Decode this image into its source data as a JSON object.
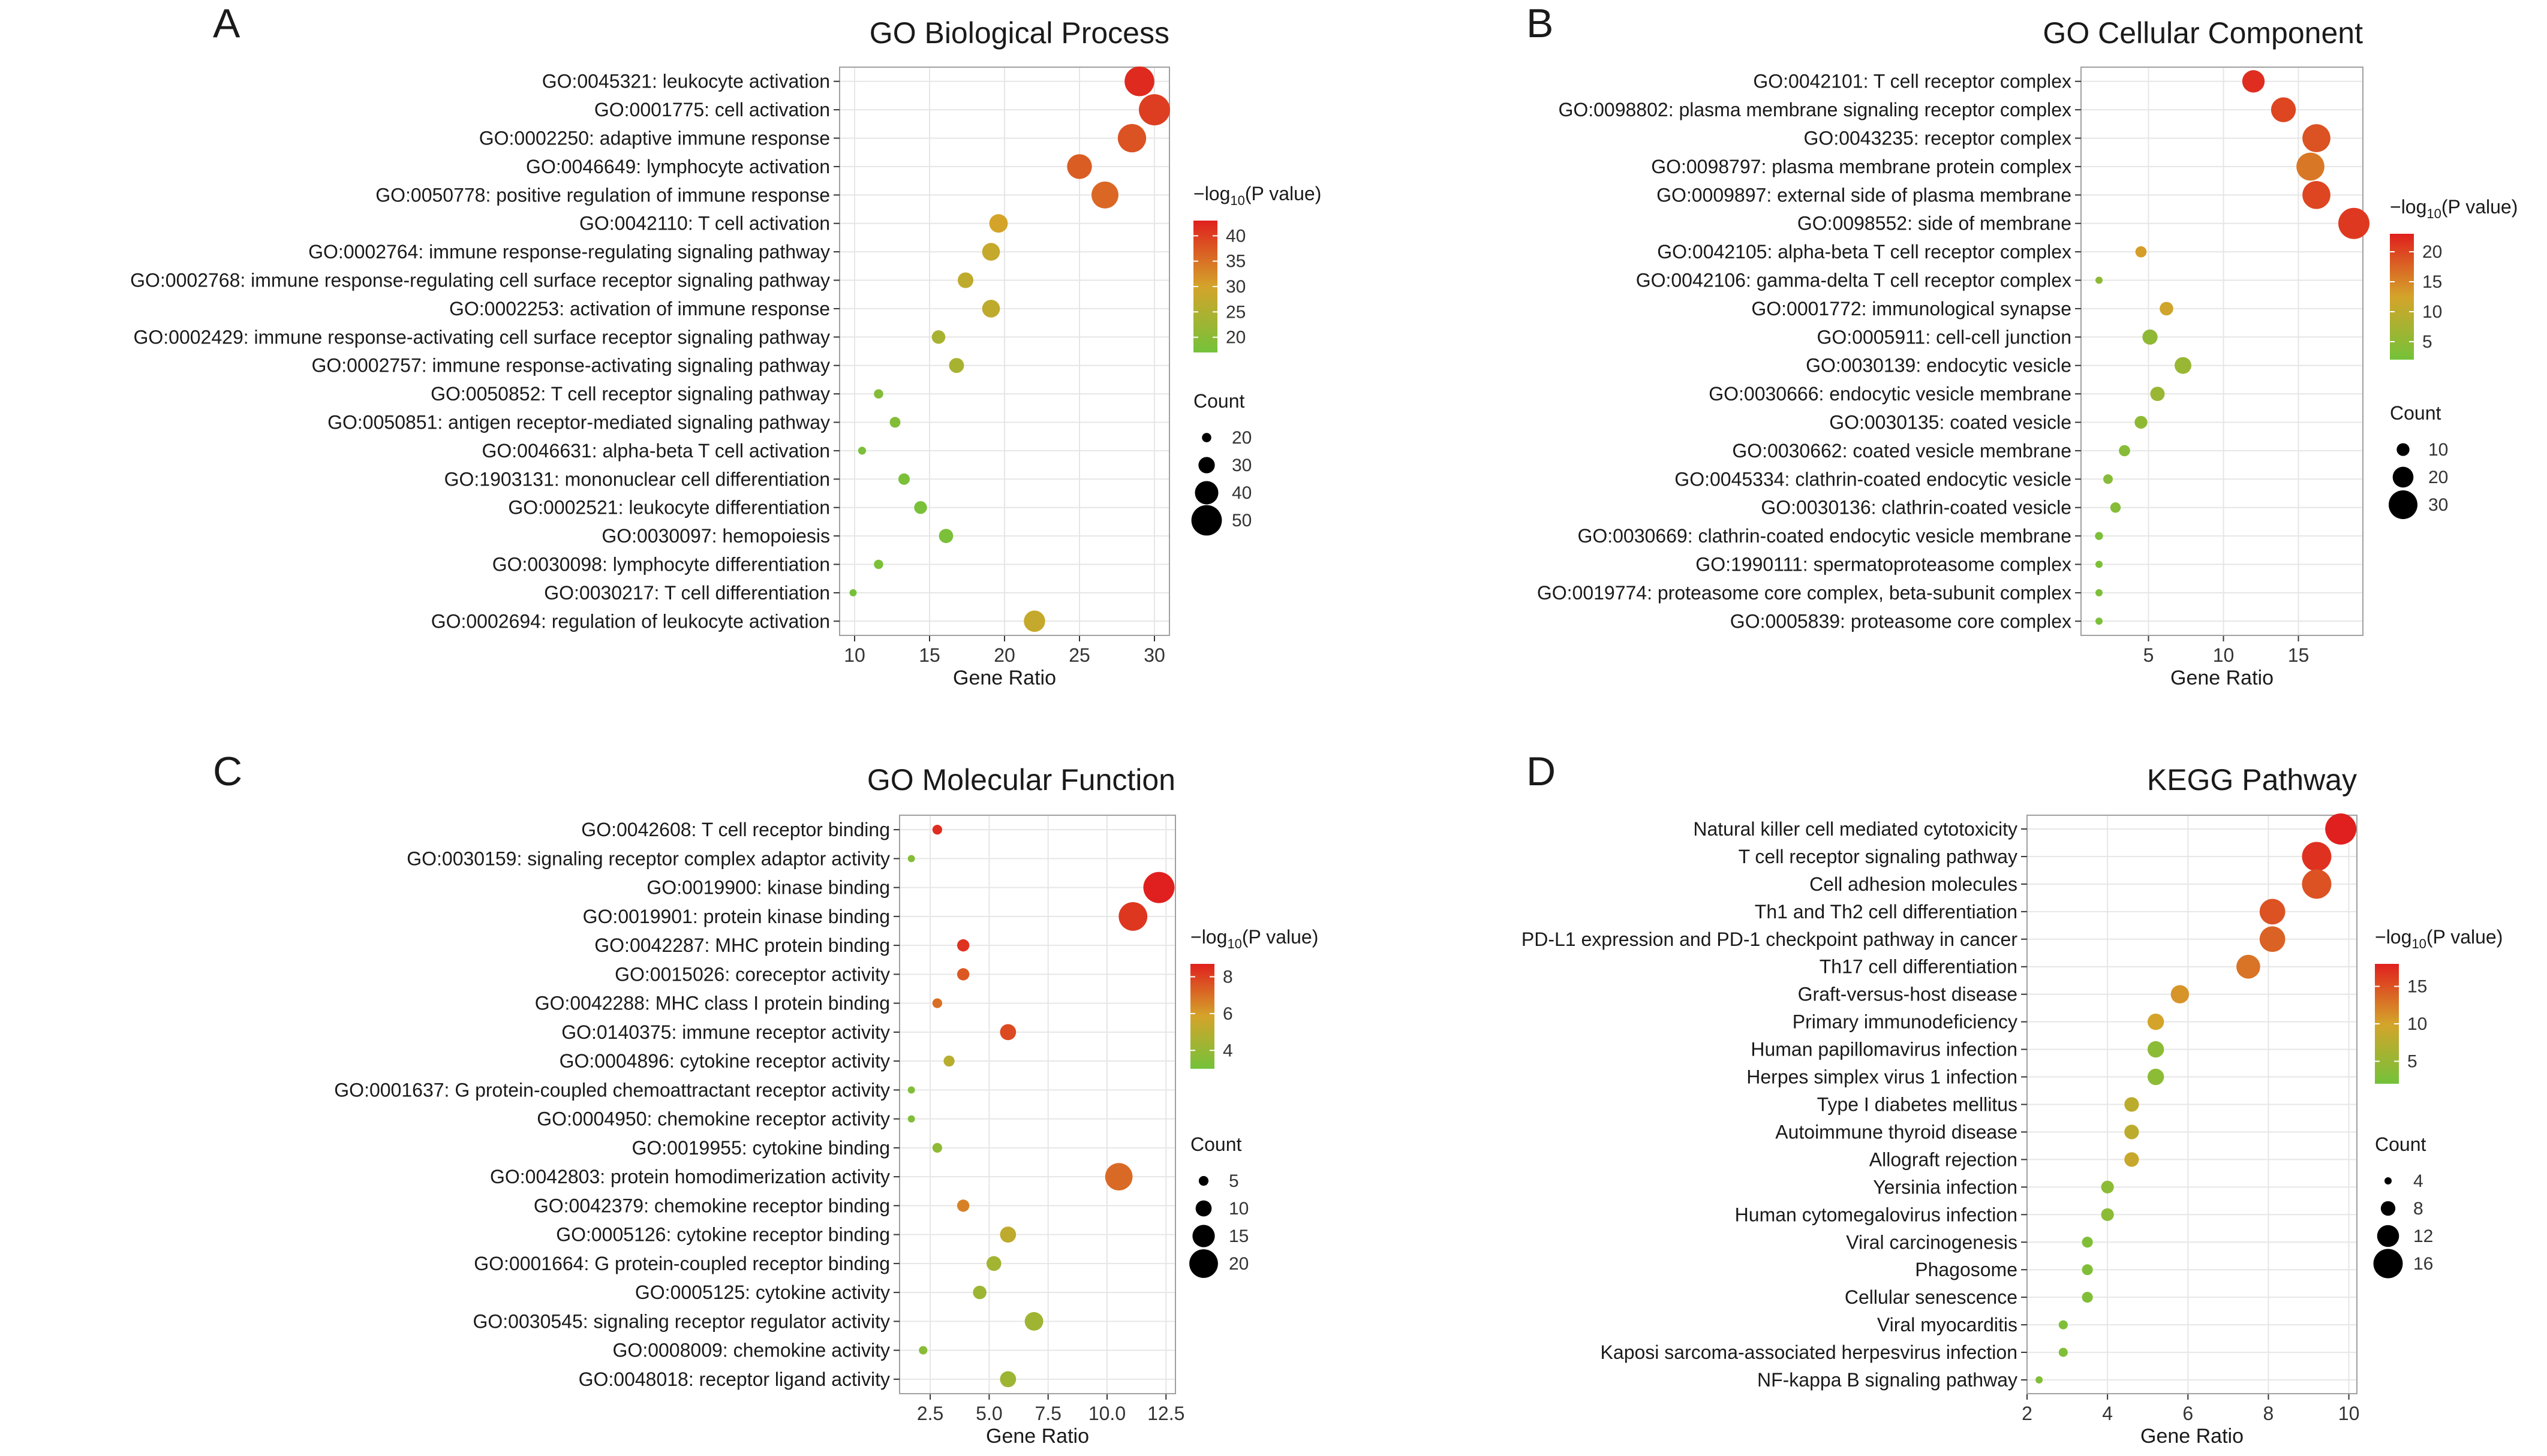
{
  "chart_data": [
    {
      "panel": "A",
      "type": "scatter",
      "title": "GO Biological Process",
      "xlabel": "Gene Ratio",
      "xlim": [
        9,
        31
      ],
      "xticks": [
        10,
        15,
        20,
        25,
        30
      ],
      "terms": [
        {
          "label": "GO:0045321: leukocyte activation",
          "x": 29.0,
          "count": 49,
          "p": 42
        },
        {
          "label": "GO:0001775: cell activation",
          "x": 30.0,
          "count": 51,
          "p": 40
        },
        {
          "label": "GO:0002250: adaptive immune response",
          "x": 28.5,
          "count": 47,
          "p": 38
        },
        {
          "label": "GO:0046649: lymphocyte activation",
          "x": 25.0,
          "count": 42,
          "p": 37
        },
        {
          "label": "GO:0050778: positive regulation of immune response",
          "x": 26.7,
          "count": 45,
          "p": 36
        },
        {
          "label": "GO:0042110: T cell activation",
          "x": 19.6,
          "count": 33,
          "p": 30
        },
        {
          "label": "GO:0002764: immune response-regulating signaling pathway",
          "x": 19.1,
          "count": 32,
          "p": 28
        },
        {
          "label": "GO:0002768: immune response-regulating cell surface receptor signaling pathway",
          "x": 17.4,
          "count": 29,
          "p": 27
        },
        {
          "label": "GO:0002253: activation of immune response",
          "x": 19.1,
          "count": 32,
          "p": 27
        },
        {
          "label": "GO:0002429: immune response-activating cell surface receptor signaling pathway",
          "x": 15.6,
          "count": 26,
          "p": 24
        },
        {
          "label": "GO:0002757: immune response-activating signaling pathway",
          "x": 16.8,
          "count": 28,
          "p": 24
        },
        {
          "label": "GO:0050852: T cell receptor signaling pathway",
          "x": 11.6,
          "count": 20,
          "p": 19
        },
        {
          "label": "GO:0050851: antigen receptor-mediated signaling pathway",
          "x": 12.7,
          "count": 22,
          "p": 19
        },
        {
          "label": "GO:0046631: alpha-beta T cell activation",
          "x": 10.5,
          "count": 18,
          "p": 18
        },
        {
          "label": "GO:1903131: mononuclear cell differentiation",
          "x": 13.3,
          "count": 23,
          "p": 18
        },
        {
          "label": "GO:0002521: leukocyte differentiation",
          "x": 14.4,
          "count": 25,
          "p": 18
        },
        {
          "label": "GO:0030097: hemopoiesis",
          "x": 16.1,
          "count": 27,
          "p": 18
        },
        {
          "label": "GO:0030098: lymphocyte differentiation",
          "x": 11.6,
          "count": 20,
          "p": 18
        },
        {
          "label": "GO:0030217: T cell differentiation",
          "x": 9.9,
          "count": 17,
          "p": 17
        },
        {
          "label": "GO:0002694: regulation of leukocyte activation",
          "x": 22.0,
          "count": 37,
          "p": 28
        }
      ],
      "color_legend": {
        "title": "−log",
        "sub": "10",
        "title_rest": "(P value)",
        "min": 17,
        "max": 43,
        "ticks": [
          40,
          35,
          30,
          25,
          20
        ]
      },
      "size_legend": {
        "title": "Count",
        "values": [
          20,
          30,
          40,
          50
        ],
        "cmin": 17,
        "cmax": 51
      }
    },
    {
      "panel": "B",
      "type": "scatter",
      "title": "GO Cellular Component",
      "xlabel": "Gene Ratio",
      "xlim": [
        0.5,
        19.3
      ],
      "xticks": [
        5,
        10,
        15
      ],
      "terms": [
        {
          "label": "GO:0042101: T cell receptor complex",
          "x": 12.0,
          "count": 22,
          "p": 22
        },
        {
          "label": "GO:0098802: plasma membrane signaling receptor complex",
          "x": 14.0,
          "count": 25,
          "p": 20
        },
        {
          "label": "GO:0043235: receptor complex",
          "x": 16.2,
          "count": 29,
          "p": 19
        },
        {
          "label": "GO:0098797: plasma membrane protein complex",
          "x": 15.8,
          "count": 29,
          "p": 16
        },
        {
          "label": "GO:0009897: external side of plasma membrane",
          "x": 16.2,
          "count": 29,
          "p": 20
        },
        {
          "label": "GO:0098552: side of membrane",
          "x": 18.7,
          "count": 33,
          "p": 21
        },
        {
          "label": "GO:0042105: alpha-beta T cell receptor complex",
          "x": 4.5,
          "count": 8,
          "p": 13
        },
        {
          "label": "GO:0042106: gamma-delta T cell receptor complex",
          "x": 1.7,
          "count": 3,
          "p": 5
        },
        {
          "label": "GO:0001772: immunological synapse",
          "x": 6.2,
          "count": 11,
          "p": 12
        },
        {
          "label": "GO:0005911: cell-cell junction",
          "x": 5.1,
          "count": 13,
          "p": 5
        },
        {
          "label": "GO:0030139: endocytic vesicle",
          "x": 7.3,
          "count": 15,
          "p": 6
        },
        {
          "label": "GO:0030666: endocytic vesicle membrane",
          "x": 5.6,
          "count": 12,
          "p": 6
        },
        {
          "label": "GO:0030135: coated vesicle",
          "x": 4.5,
          "count": 10,
          "p": 5
        },
        {
          "label": "GO:0030662: coated vesicle membrane",
          "x": 3.4,
          "count": 8,
          "p": 4
        },
        {
          "label": "GO:0045334: clathrin-coated endocytic vesicle",
          "x": 2.3,
          "count": 6,
          "p": 4
        },
        {
          "label": "GO:0030136: clathrin-coated vesicle",
          "x": 2.8,
          "count": 7,
          "p": 4
        },
        {
          "label": "GO:0030669: clathrin-coated endocytic vesicle membrane",
          "x": 1.7,
          "count": 4,
          "p": 3
        },
        {
          "label": "GO:1990111: spermatoproteasome complex",
          "x": 1.7,
          "count": 3,
          "p": 3
        },
        {
          "label": "GO:0019774: proteasome core complex, beta-subunit complex",
          "x": 1.7,
          "count": 3,
          "p": 3
        },
        {
          "label": "GO:0005839: proteasome core complex",
          "x": 1.7,
          "count": 3,
          "p": 3
        }
      ],
      "color_legend": {
        "title": "−log",
        "sub": "10",
        "title_rest": "(P value)",
        "min": 2,
        "max": 23,
        "ticks": [
          20,
          15,
          10,
          5
        ]
      },
      "size_legend": {
        "title": "Count",
        "values": [
          10,
          20,
          30
        ],
        "cmin": 3,
        "cmax": 33
      }
    },
    {
      "panel": "C",
      "type": "scatter",
      "title": "GO Molecular Function",
      "xlabel": "Gene Ratio",
      "xlim": [
        1.2,
        12.9
      ],
      "xticks": [
        2.5,
        5.0,
        7.5,
        10.0,
        12.5
      ],
      "xtick_labels": [
        "2.5",
        "5.0",
        "7.5",
        "10.0",
        "12.5"
      ],
      "terms": [
        {
          "label": "GO:0042608: T cell receptor binding",
          "x": 2.8,
          "count": 5,
          "p": 8.4
        },
        {
          "label": "GO:0030159: signaling receptor complex adaptor activity",
          "x": 1.7,
          "count": 3,
          "p": 3.5
        },
        {
          "label": "GO:0019900: kinase binding",
          "x": 12.2,
          "count": 22,
          "p": 8.7
        },
        {
          "label": "GO:0019901: protein kinase binding",
          "x": 11.1,
          "count": 20,
          "p": 8.2
        },
        {
          "label": "GO:0042287: MHC protein binding",
          "x": 3.9,
          "count": 7,
          "p": 8.3
        },
        {
          "label": "GO:0015026: coreceptor activity",
          "x": 3.9,
          "count": 7,
          "p": 7.5
        },
        {
          "label": "GO:0042288: MHC class I protein binding",
          "x": 2.8,
          "count": 5,
          "p": 7.0
        },
        {
          "label": "GO:0140375: immune receptor activity",
          "x": 5.8,
          "count": 10,
          "p": 7.8
        },
        {
          "label": "GO:0004896: cytokine receptor activity",
          "x": 3.3,
          "count": 6,
          "p": 5.0
        },
        {
          "label": "GO:0001637: G protein-coupled chemoattractant receptor activity",
          "x": 1.7,
          "count": 3,
          "p": 3.4
        },
        {
          "label": "GO:0004950: chemokine receptor activity",
          "x": 1.7,
          "count": 3,
          "p": 3.4
        },
        {
          "label": "GO:0019955: cytokine binding",
          "x": 2.8,
          "count": 5,
          "p": 3.8
        },
        {
          "label": "GO:0042803: protein homodimerization activity",
          "x": 10.5,
          "count": 19,
          "p": 7.1
        },
        {
          "label": "GO:0042379: chemokine receptor binding",
          "x": 3.9,
          "count": 7,
          "p": 6.6
        },
        {
          "label": "GO:0005126: cytokine receptor binding",
          "x": 5.8,
          "count": 10,
          "p": 5.2
        },
        {
          "label": "GO:0001664: G protein-coupled receptor binding",
          "x": 5.2,
          "count": 9,
          "p": 4.4
        },
        {
          "label": "GO:0005125: cytokine activity",
          "x": 4.6,
          "count": 8,
          "p": 4.2
        },
        {
          "label": "GO:0030545: signaling receptor regulator activity",
          "x": 6.9,
          "count": 12,
          "p": 4.3
        },
        {
          "label": "GO:0008009: chemokine activity",
          "x": 2.2,
          "count": 4,
          "p": 3.6
        },
        {
          "label": "GO:0048018: receptor ligand activity",
          "x": 5.8,
          "count": 10,
          "p": 4.2
        }
      ],
      "color_legend": {
        "title": "−log",
        "sub": "10",
        "title_rest": "(P value)",
        "min": 3,
        "max": 8.7,
        "ticks": [
          8,
          6,
          4
        ]
      },
      "size_legend": {
        "title": "Count",
        "values": [
          5,
          10,
          15,
          20
        ],
        "cmin": 3,
        "cmax": 22
      }
    },
    {
      "panel": "D",
      "type": "scatter",
      "title": "KEGG Pathway",
      "xlabel": "Gene Ratio",
      "xlim": [
        2,
        10.2
      ],
      "xticks": [
        2,
        4,
        6,
        8,
        10
      ],
      "terms": [
        {
          "label": "Natural killer cell mediated cytotoxicity",
          "x": 9.8,
          "count": 17,
          "p": 18
        },
        {
          "label": "T cell receptor signaling pathway",
          "x": 9.2,
          "count": 16,
          "p": 17
        },
        {
          "label": "Cell adhesion molecules",
          "x": 9.2,
          "count": 16,
          "p": 15
        },
        {
          "label": "Th1 and Th2 cell differentiation",
          "x": 8.1,
          "count": 14,
          "p": 15
        },
        {
          "label": "PD-L1 expression and PD-1 checkpoint pathway in cancer",
          "x": 8.1,
          "count": 14,
          "p": 14
        },
        {
          "label": "Th17 cell differentiation",
          "x": 7.5,
          "count": 13,
          "p": 13
        },
        {
          "label": "Graft-versus-host disease",
          "x": 5.8,
          "count": 10,
          "p": 11
        },
        {
          "label": "Primary immunodeficiency",
          "x": 5.2,
          "count": 9,
          "p": 10
        },
        {
          "label": "Human papillomavirus infection",
          "x": 5.2,
          "count": 9,
          "p": 4
        },
        {
          "label": "Herpes simplex virus 1 infection",
          "x": 5.2,
          "count": 9,
          "p": 4
        },
        {
          "label": "Type I diabetes mellitus",
          "x": 4.6,
          "count": 8,
          "p": 8
        },
        {
          "label": "Autoimmune thyroid disease",
          "x": 4.6,
          "count": 8,
          "p": 8
        },
        {
          "label": "Allograft rejection",
          "x": 4.6,
          "count": 8,
          "p": 9
        },
        {
          "label": "Yersinia infection",
          "x": 4.0,
          "count": 7,
          "p": 4
        },
        {
          "label": "Human cytomegalovirus infection",
          "x": 4.0,
          "count": 7,
          "p": 4
        },
        {
          "label": "Viral carcinogenesis",
          "x": 3.5,
          "count": 6,
          "p": 3
        },
        {
          "label": "Phagosome",
          "x": 3.5,
          "count": 6,
          "p": 3
        },
        {
          "label": "Cellular senescence",
          "x": 3.5,
          "count": 6,
          "p": 3
        },
        {
          "label": "Viral myocarditis",
          "x": 2.9,
          "count": 5,
          "p": 3
        },
        {
          "label": "Kaposi sarcoma-associated herpesvirus infection",
          "x": 2.9,
          "count": 5,
          "p": 3
        },
        {
          "label": "NF-kappa B signaling pathway",
          "x": 2.3,
          "count": 4,
          "p": 3
        }
      ],
      "color_legend": {
        "title": "−log",
        "sub": "10",
        "title_rest": "(P value)",
        "min": 2,
        "max": 18,
        "ticks": [
          15,
          10,
          5
        ]
      },
      "size_legend": {
        "title": "Count",
        "values": [
          4,
          8,
          12,
          16
        ],
        "cmin": 4,
        "cmax": 17
      }
    }
  ],
  "colors": {
    "low": "#74c23a",
    "mid": "#d4a42a",
    "high": "#e0201e",
    "grid": "#e6e6e6",
    "text": "#1a1a1a",
    "panel_bg": "#ffffff",
    "border": "#a0a0a0"
  }
}
